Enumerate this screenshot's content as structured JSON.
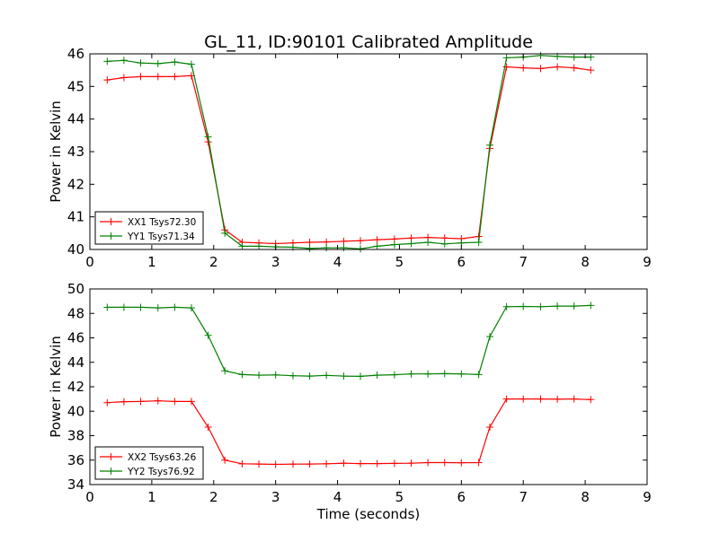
{
  "figure": {
    "title": "GL_11, ID:90101 Calibrated Amplitude"
  },
  "chart_data": [
    {
      "type": "line",
      "title": "GL_11, ID:90101 Calibrated Amplitude",
      "xlabel": "",
      "ylabel": "Power in Kelvin",
      "xlim": [
        0,
        9
      ],
      "ylim": [
        40,
        46
      ],
      "xticks": [
        0,
        1,
        2,
        3,
        4,
        5,
        6,
        7,
        8,
        9
      ],
      "yticks": [
        40,
        41,
        42,
        43,
        44,
        45,
        46
      ],
      "grid": false,
      "legend_position": "lower-left",
      "x": [
        0.28,
        0.55,
        0.82,
        1.1,
        1.37,
        1.64,
        1.91,
        2.18,
        2.46,
        2.73,
        3.0,
        3.28,
        3.55,
        3.82,
        4.1,
        4.37,
        4.64,
        4.92,
        5.19,
        5.46,
        5.73,
        6.0,
        6.28,
        6.46,
        6.73,
        7.0,
        7.28,
        7.55,
        7.82,
        8.09
      ],
      "series": [
        {
          "name": "XX1 Tsys72.30",
          "color": "#ff0000",
          "values": [
            45.2,
            45.27,
            45.3,
            45.3,
            45.3,
            45.33,
            43.3,
            40.6,
            40.22,
            40.2,
            40.18,
            40.2,
            40.22,
            40.23,
            40.25,
            40.27,
            40.3,
            40.32,
            40.35,
            40.37,
            40.35,
            40.33,
            40.4,
            43.1,
            45.6,
            45.57,
            45.55,
            45.6,
            45.57,
            45.5
          ]
        },
        {
          "name": "YY1 Tsys71.34",
          "color": "#008000",
          "values": [
            45.77,
            45.8,
            45.72,
            45.7,
            45.75,
            45.68,
            43.45,
            40.5,
            40.1,
            40.1,
            40.08,
            40.07,
            40.03,
            40.05,
            40.05,
            40.02,
            40.1,
            40.15,
            40.18,
            40.22,
            40.17,
            40.2,
            40.22,
            43.2,
            45.88,
            45.9,
            45.95,
            45.92,
            45.9,
            45.9
          ]
        }
      ]
    },
    {
      "type": "line",
      "title": "",
      "xlabel": "Time (seconds)",
      "ylabel": "Power in Kelvin",
      "xlim": [
        0,
        9
      ],
      "ylim": [
        34,
        50
      ],
      "xticks": [
        0,
        1,
        2,
        3,
        4,
        5,
        6,
        7,
        8,
        9
      ],
      "yticks": [
        34,
        36,
        38,
        40,
        42,
        44,
        46,
        48,
        50
      ],
      "grid": false,
      "legend_position": "lower-left",
      "x": [
        0.28,
        0.55,
        0.82,
        1.1,
        1.37,
        1.64,
        1.91,
        2.18,
        2.46,
        2.73,
        3.0,
        3.28,
        3.55,
        3.82,
        4.1,
        4.37,
        4.64,
        4.92,
        5.19,
        5.46,
        5.73,
        6.0,
        6.28,
        6.46,
        6.73,
        7.0,
        7.28,
        7.55,
        7.82,
        8.09
      ],
      "series": [
        {
          "name": "XX2 Tsys63.26",
          "color": "#ff0000",
          "values": [
            40.7,
            40.78,
            40.8,
            40.85,
            40.8,
            40.8,
            38.7,
            36.0,
            35.7,
            35.68,
            35.65,
            35.67,
            35.68,
            35.7,
            35.75,
            35.72,
            35.72,
            35.73,
            35.75,
            35.8,
            35.8,
            35.78,
            35.8,
            38.7,
            41.0,
            41.0,
            41.0,
            40.98,
            41.0,
            40.95
          ]
        },
        {
          "name": "YY2 Tsys76.92",
          "color": "#008000",
          "values": [
            48.5,
            48.5,
            48.5,
            48.45,
            48.5,
            48.45,
            46.2,
            43.3,
            43.0,
            42.95,
            42.97,
            42.9,
            42.87,
            42.93,
            42.87,
            42.85,
            42.95,
            42.98,
            43.05,
            43.05,
            43.07,
            43.05,
            43.0,
            46.1,
            48.55,
            48.57,
            48.55,
            48.6,
            48.6,
            48.65
          ]
        }
      ]
    }
  ]
}
